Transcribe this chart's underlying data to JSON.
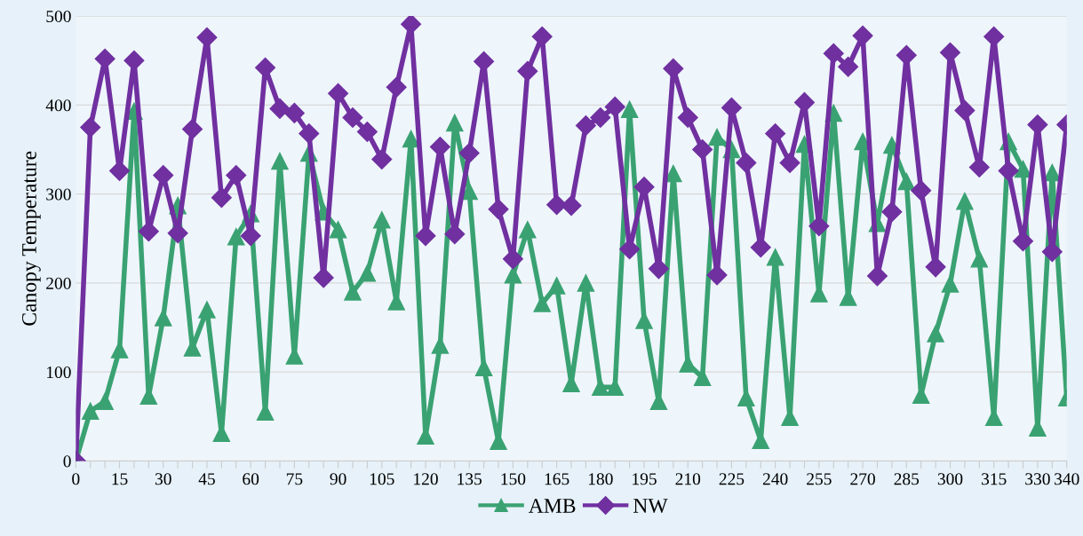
{
  "chart_data": {
    "type": "line",
    "ylabel": "Canopy Temperature",
    "x": [
      0,
      5,
      10,
      15,
      20,
      25,
      30,
      35,
      40,
      45,
      50,
      55,
      60,
      65,
      70,
      75,
      80,
      85,
      90,
      95,
      100,
      105,
      110,
      115,
      120,
      125,
      130,
      135,
      140,
      145,
      150,
      155,
      160,
      165,
      170,
      175,
      180,
      185,
      190,
      195,
      200,
      205,
      210,
      215,
      220,
      225,
      230,
      235,
      240,
      245,
      250,
      255,
      260,
      265,
      270,
      275,
      280,
      285,
      290,
      295,
      300,
      305,
      310,
      315,
      320,
      325,
      330,
      335,
      340
    ],
    "series": [
      {
        "name": "AMB",
        "color": "#3aa272",
        "marker": "triangle",
        "values": [
          0,
          56,
          67,
          125,
          393,
          73,
          161,
          287,
          127,
          170,
          31,
          252,
          278,
          55,
          337,
          118,
          346,
          280,
          260,
          190,
          211,
          271,
          179,
          362,
          28,
          130,
          380,
          303,
          105,
          22,
          209,
          260,
          177,
          197,
          87,
          200,
          83,
          83,
          395,
          158,
          67,
          323,
          109,
          94,
          364,
          350,
          71,
          23,
          229,
          49,
          356,
          188,
          391,
          184,
          359,
          267,
          355,
          314,
          74,
          143,
          199,
          292,
          227,
          49,
          359,
          328,
          37,
          324,
          71
        ]
      },
      {
        "name": "NW",
        "color": "#7030a0",
        "marker": "diamond",
        "values": [
          0,
          375,
          452,
          326,
          450,
          258,
          321,
          256,
          373,
          476,
          296,
          321,
          253,
          442,
          396,
          391,
          368,
          206,
          413,
          386,
          370,
          339,
          420,
          491,
          253,
          353,
          255,
          346,
          449,
          283,
          227,
          438,
          477,
          288,
          287,
          377,
          386,
          398,
          238,
          308,
          216,
          441,
          386,
          350,
          209,
          397,
          335,
          240,
          368,
          335,
          403,
          264,
          458,
          443,
          478,
          208,
          280,
          456,
          304,
          218,
          459,
          394,
          330,
          477,
          326,
          247,
          378,
          235,
          378
        ]
      }
    ],
    "xlim": [
      0,
      340
    ],
    "xticks": [
      0,
      {
        "value": 5,
        "label": null
      },
      {
        "value": 10,
        "label": null
      },
      15,
      {
        "value": 20,
        "label": null
      },
      {
        "value": 25,
        "label": null
      },
      30,
      {
        "value": 35,
        "label": null
      },
      {
        "value": 40,
        "label": null
      },
      45,
      {
        "value": 50,
        "label": null
      },
      {
        "value": 55,
        "label": null
      },
      60,
      {
        "value": 65,
        "label": null
      },
      {
        "value": 70,
        "label": null
      },
      75,
      {
        "value": 80,
        "label": null
      },
      {
        "value": 85,
        "label": null
      },
      90,
      {
        "value": 95,
        "label": null
      },
      {
        "value": 100,
        "label": null
      },
      105,
      {
        "value": 110,
        "label": null
      },
      {
        "value": 115,
        "label": null
      },
      120,
      {
        "value": 125,
        "label": null
      },
      {
        "value": 130,
        "label": null
      },
      135,
      {
        "value": 140,
        "label": null
      },
      {
        "value": 145,
        "label": null
      },
      150,
      {
        "value": 155,
        "label": null
      },
      {
        "value": 160,
        "label": null
      },
      165,
      {
        "value": 170,
        "label": null
      },
      {
        "value": 175,
        "label": null
      },
      180,
      {
        "value": 185,
        "label": null
      },
      {
        "value": 190,
        "label": null
      },
      195,
      {
        "value": 200,
        "label": null
      },
      {
        "value": 205,
        "label": null
      },
      210,
      {
        "value": 215,
        "label": null
      },
      {
        "value": 220,
        "label": null
      },
      225,
      {
        "value": 230,
        "label": null
      },
      {
        "value": 235,
        "label": null
      },
      240,
      {
        "value": 245,
        "label": null
      },
      {
        "value": 250,
        "label": null
      },
      255,
      {
        "value": 260,
        "label": null
      },
      {
        "value": 265,
        "label": null
      },
      270,
      {
        "value": 275,
        "label": null
      },
      {
        "value": 280,
        "label": null
      },
      285,
      {
        "value": 290,
        "label": null
      },
      {
        "value": 295,
        "label": null
      },
      300,
      {
        "value": 305,
        "label": null
      },
      {
        "value": 310,
        "label": null
      },
      315,
      {
        "value": 320,
        "label": null
      },
      {
        "value": 325,
        "label": null
      },
      330,
      {
        "value": 335,
        "label": null
      },
      340
    ],
    "ylim": [
      0,
      500
    ],
    "yticks": [
      0,
      100,
      200,
      300,
      400,
      500
    ],
    "grid": "y",
    "legend": "bottom",
    "line_style": "solid"
  }
}
